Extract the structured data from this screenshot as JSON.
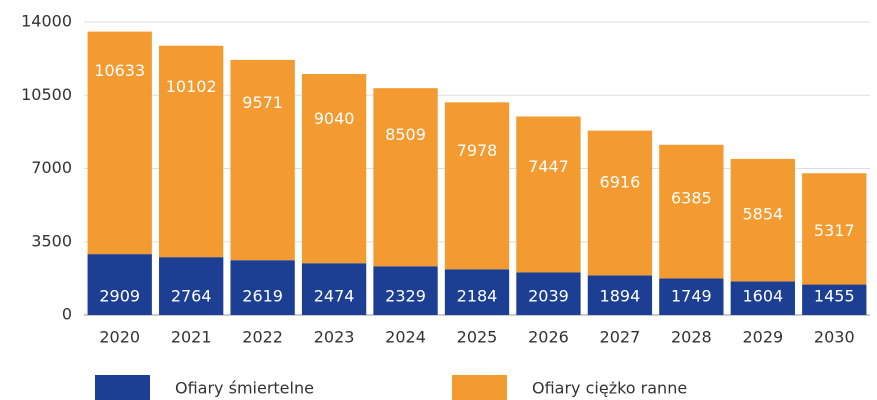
{
  "chart_data": {
    "type": "stacked_bar",
    "categories": [
      "2020",
      "2021",
      "2022",
      "2023",
      "2024",
      "2025",
      "2026",
      "2027",
      "2028",
      "2029",
      "2030"
    ],
    "series": [
      {
        "name": "Ofiary śmiertelne",
        "color": "#1c3f94",
        "values": [
          2909,
          2764,
          2619,
          2474,
          2329,
          2184,
          2039,
          1894,
          1749,
          1604,
          1455
        ]
      },
      {
        "name": "Ofiary ciężko ranne",
        "color": "#f39a30",
        "values": [
          10633,
          10102,
          9571,
          9040,
          8509,
          7978,
          7447,
          6916,
          6385,
          5854,
          5317
        ]
      }
    ],
    "ylim": [
      0,
      14000
    ],
    "yticks": [
      0,
      3500,
      7000,
      10500,
      14000
    ],
    "grid": true,
    "legend": "bottom"
  }
}
